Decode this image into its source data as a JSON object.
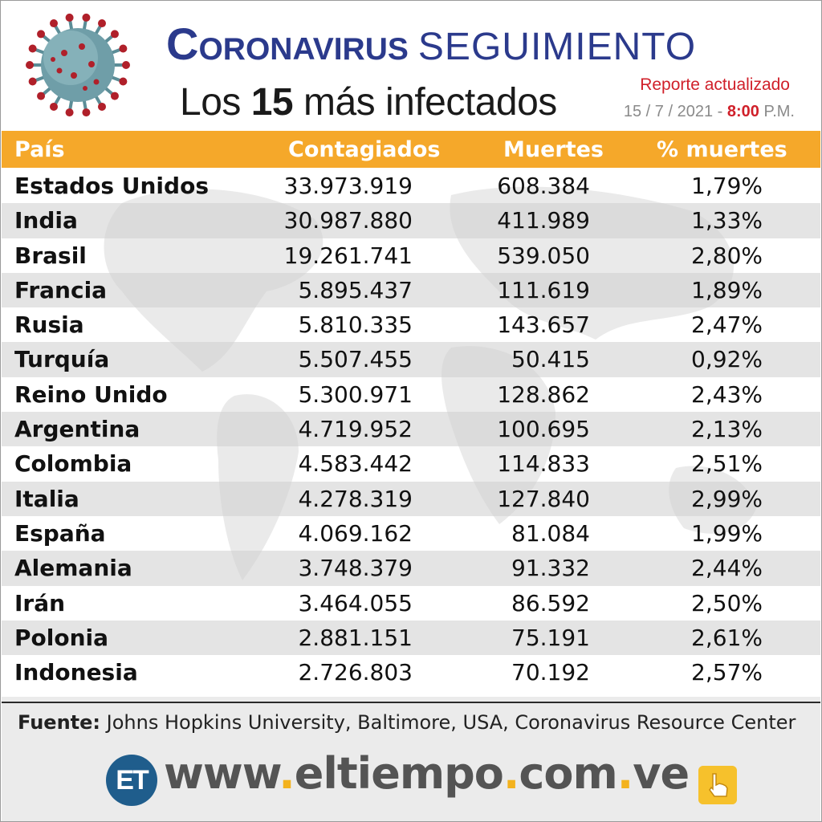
{
  "header": {
    "title_bold": "Coronavirus",
    "title_light": "SEGUIMIENTO",
    "subtitle_prefix": "Los",
    "subtitle_number": "15",
    "subtitle_suffix": "más infectados",
    "update_label": "Reporte actualizado",
    "update_date": "15 / 7 / 2021 -",
    "update_time": "8:00",
    "update_period": "P.M."
  },
  "table": {
    "columns": [
      "País",
      "Contagiados",
      "Muertes",
      "% muertes"
    ],
    "rows": [
      {
        "country": "Estados Unidos",
        "cases": "33.973.919",
        "deaths": "608.384",
        "pct": "1,79%"
      },
      {
        "country": "India",
        "cases": "30.987.880",
        "deaths": "411.989",
        "pct": "1,33%"
      },
      {
        "country": "Brasil",
        "cases": "19.261.741",
        "deaths": "539.050",
        "pct": "2,80%"
      },
      {
        "country": "Francia",
        "cases": "5.895.437",
        "deaths": "111.619",
        "pct": "1,89%"
      },
      {
        "country": "Rusia",
        "cases": "5.810.335",
        "deaths": "143.657",
        "pct": "2,47%"
      },
      {
        "country": "Turquía",
        "cases": "5.507.455",
        "deaths": "50.415",
        "pct": "0,92%"
      },
      {
        "country": "Reino Unido",
        "cases": "5.300.971",
        "deaths": "128.862",
        "pct": "2,43%"
      },
      {
        "country": "Argentina",
        "cases": "4.719.952",
        "deaths": "100.695",
        "pct": "2,13%"
      },
      {
        "country": "Colombia",
        "cases": "4.583.442",
        "deaths": "114.833",
        "pct": "2,51%"
      },
      {
        "country": "Italia",
        "cases": "4.278.319",
        "deaths": "127.840",
        "pct": "2,99%"
      },
      {
        "country": "España",
        "cases": "4.069.162",
        "deaths": "81.084",
        "pct": "1,99%"
      },
      {
        "country": "Alemania",
        "cases": "3.748.379",
        "deaths": "91.332",
        "pct": "2,44%"
      },
      {
        "country": "Irán",
        "cases": "3.464.055",
        "deaths": "86.592",
        "pct": "2,50%"
      },
      {
        "country": "Polonia",
        "cases": "2.881.151",
        "deaths": "75.191",
        "pct": "2,61%"
      },
      {
        "country": "Indonesia",
        "cases": "2.726.803",
        "deaths": "70.192",
        "pct": "2,57%"
      }
    ]
  },
  "footer": {
    "source_label": "Fuente:",
    "source_text": "Johns Hopkins University, Baltimore, USA, Coronavirus Resource Center",
    "logo_text": "ET",
    "url_part1": "www",
    "url_part2": "eltiempo",
    "url_part3": "com",
    "url_part4": "ve",
    "url_dot": "."
  },
  "icons": [
    "coronavirus-icon",
    "world-map-background",
    "et-logo-icon",
    "pointing-hand-icon"
  ],
  "colors": {
    "title_blue": "#2b3a8c",
    "accent_red": "#d0202a",
    "header_orange": "#f5a82a",
    "logo_blue": "#1f5d8c",
    "url_gray": "#545454",
    "url_dot_yellow": "#f3b21e"
  }
}
